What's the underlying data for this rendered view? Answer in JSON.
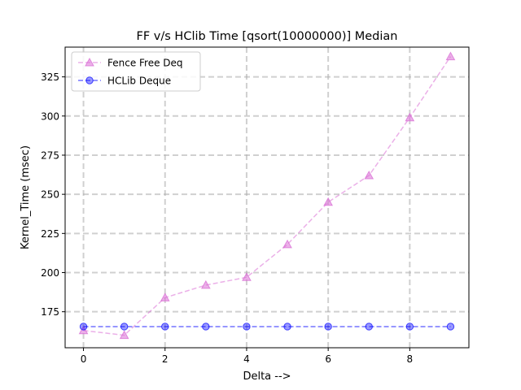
{
  "chart_data": {
    "type": "line",
    "title": "FF v/s HClib Time [qsort(10000000)] Median",
    "xlabel": "Delta -->",
    "ylabel": "Kernel_Time (msec)",
    "xlim": [
      -0.45,
      9.45
    ],
    "ylim": [
      152,
      344
    ],
    "x_ticks": [
      0,
      2,
      4,
      6,
      8
    ],
    "y_ticks": [
      175,
      200,
      225,
      250,
      275,
      300,
      325
    ],
    "grid": true,
    "legend_position": "top-left",
    "x": [
      0,
      1,
      2,
      3,
      4,
      5,
      6,
      7,
      8,
      9
    ],
    "series": [
      {
        "name": "Fence Free Deq",
        "color": "#da70d6",
        "marker": "triangle",
        "linestyle": "dashed",
        "values": [
          163,
          160,
          184,
          192,
          197,
          218,
          245,
          262,
          299,
          338
        ]
      },
      {
        "name": "HCLib Deque",
        "color": "#0000ff",
        "marker": "circle",
        "linestyle": "dashed",
        "values": [
          165.5,
          165.5,
          165.5,
          165.5,
          165.5,
          165.5,
          165.5,
          165.5,
          165.5,
          165.5
        ]
      }
    ]
  }
}
